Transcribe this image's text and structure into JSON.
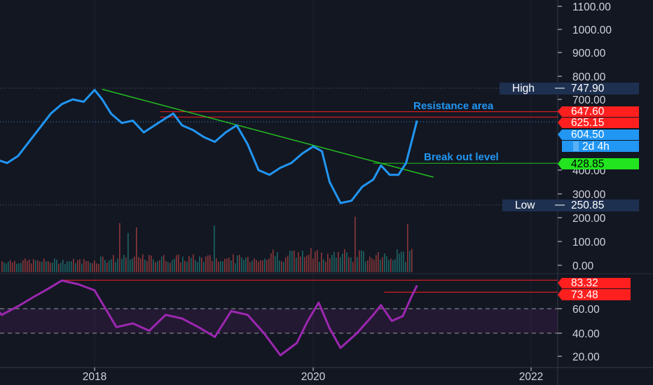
{
  "chart_data": {
    "type": "line",
    "colors": {
      "background": "#131722",
      "price": "#2196f3",
      "trendline": "#22c21f",
      "resistance": "#ff1f1f",
      "rsi": "#9c27b0",
      "axis_text": "#d1d4dc",
      "volume_up": "#26a69a",
      "volume_down": "#ef5350"
    },
    "x_ticks": [
      "2018",
      "2020",
      "2022"
    ],
    "price_axis": {
      "ticks": [
        "1100.00",
        "1000.00",
        "900.00",
        "800.00",
        "700.00",
        "400.00",
        "300.00"
      ],
      "ylim": [
        250,
        1150
      ]
    },
    "volume_axis": {
      "ticks": [
        "200.00",
        "100.00",
        "0.00"
      ]
    },
    "rsi_axis": {
      "ticks": [
        "60.00",
        "40.00",
        "20.00"
      ],
      "bands": [
        40,
        60
      ]
    },
    "price_series": {
      "x": [
        2017.0,
        2017.1,
        2017.2,
        2017.3,
        2017.4,
        2017.5,
        2017.6,
        2017.7,
        2017.8,
        2017.9,
        2018.0,
        2018.07,
        2018.15,
        2018.25,
        2018.35,
        2018.45,
        2018.55,
        2018.65,
        2018.72,
        2018.8,
        2018.9,
        2019.0,
        2019.1,
        2019.2,
        2019.3,
        2019.4,
        2019.5,
        2019.6,
        2019.7,
        2019.8,
        2019.9,
        2020.0,
        2020.08,
        2020.15,
        2020.25,
        2020.35,
        2020.45,
        2020.55,
        2020.62,
        2020.7,
        2020.78,
        2020.85,
        2020.9,
        2020.95
      ],
      "y": [
        460,
        445,
        430,
        460,
        520,
        580,
        640,
        680,
        700,
        690,
        740,
        700,
        640,
        600,
        610,
        560,
        590,
        620,
        640,
        590,
        570,
        540,
        520,
        560,
        590,
        510,
        400,
        380,
        410,
        430,
        470,
        500,
        480,
        350,
        260,
        270,
        330,
        360,
        420,
        380,
        380,
        430,
        520,
        610
      ]
    },
    "rsi_series": {
      "x": [
        2017.0,
        2017.15,
        2017.3,
        2017.45,
        2017.55,
        2017.7,
        2017.85,
        2018.0,
        2018.1,
        2018.2,
        2018.35,
        2018.5,
        2018.65,
        2018.8,
        2018.95,
        2019.1,
        2019.25,
        2019.4,
        2019.55,
        2019.7,
        2019.85,
        2019.95,
        2020.05,
        2020.15,
        2020.25,
        2020.4,
        2020.55,
        2020.62,
        2020.72,
        2020.82,
        2020.9,
        2020.95
      ],
      "y": [
        70,
        55,
        62,
        70,
        75,
        83,
        80,
        75,
        60,
        45,
        48,
        42,
        55,
        52,
        45,
        37,
        58,
        55,
        40,
        22,
        32,
        50,
        65,
        44,
        28,
        40,
        55,
        63,
        50,
        54,
        70,
        79
      ]
    },
    "trendline": {
      "x": [
        2018.07,
        2021.1
      ],
      "y": [
        743,
        370
      ]
    },
    "breakout_line": {
      "x": [
        2020.55,
        2022.3
      ],
      "y": [
        428.85,
        428.85
      ]
    },
    "resistance_lines": [
      {
        "x_start": 2018.6,
        "y": 647.6
      },
      {
        "x_start": 2018.6,
        "y": 625.15
      }
    ],
    "rsi_levels": [
      {
        "x_start": 2017.7,
        "y": 83.32
      },
      {
        "x_start": 2020.65,
        "y": 73.48
      }
    ],
    "annotations": {
      "resistance": "Resistance area",
      "breakout": "Break out level"
    },
    "badges": {
      "high_label": "High",
      "high_value": "747.90",
      "low_label": "Low",
      "low_value": "250.85",
      "price_647": "647.60",
      "price_625": "625.15",
      "price_604": "604.50",
      "timeframe": "2d 4h",
      "price_428": "428.85",
      "rsi_83": "83.32",
      "rsi_73": "73.48"
    }
  }
}
